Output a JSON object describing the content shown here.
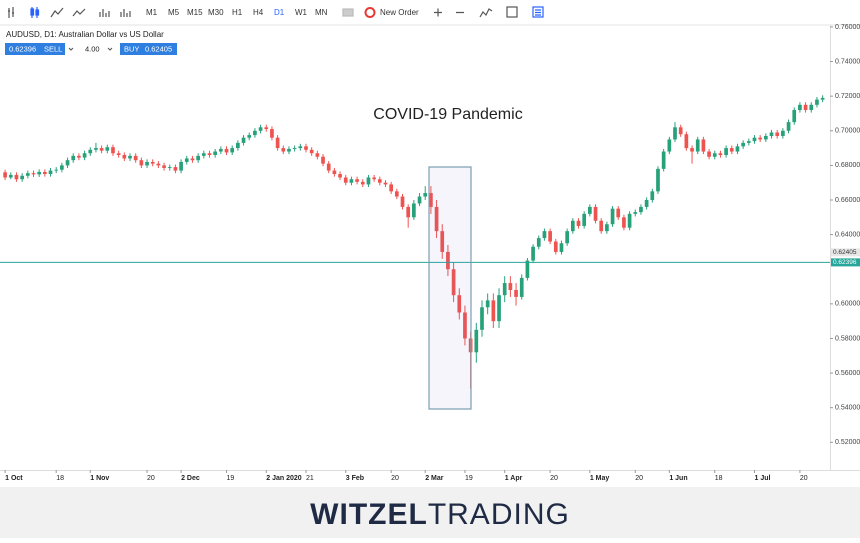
{
  "toolbar": {
    "timeframes": [
      "M1",
      "M5",
      "M15",
      "M30",
      "H1",
      "H4",
      "D1",
      "W1",
      "MN"
    ],
    "new_order": "New Order"
  },
  "trade_panel": {
    "sell_price": "0.62396",
    "sell": "SELL",
    "volume": "4.00",
    "buy": "BUY",
    "buy_price": "0.62405"
  },
  "chart_data": {
    "type": "candlestick",
    "symbol_label": "AUDUSD, D1: Australian Dollar vs US Dollar",
    "annotation": "COVID-19 Pandemic",
    "up_color": "#26a17a",
    "down_color": "#ef5350",
    "grid": false,
    "xlim": [
      -0.9,
      145.3
    ],
    "ylim": [
      0.504,
      0.764
    ],
    "xticks": [
      {
        "value": 0,
        "label": "1 Oct"
      },
      {
        "value": 9,
        "label": "18"
      },
      {
        "value": 15,
        "label": "1 Nov"
      },
      {
        "value": 25,
        "label": "20"
      },
      {
        "value": 31,
        "label": "2 Dec"
      },
      {
        "value": 39,
        "label": "19"
      },
      {
        "value": 46,
        "label": "2 Jan 2020"
      },
      {
        "value": 53,
        "label": "21"
      },
      {
        "value": 60,
        "label": "3 Feb"
      },
      {
        "value": 68,
        "label": "20"
      },
      {
        "value": 74,
        "label": "2 Mar"
      },
      {
        "value": 81,
        "label": "19"
      },
      {
        "value": 88,
        "label": "1 Apr"
      },
      {
        "value": 96,
        "label": "20"
      },
      {
        "value": 103,
        "label": "1 May"
      },
      {
        "value": 111,
        "label": "20"
      },
      {
        "value": 117,
        "label": "1 Jun"
      },
      {
        "value": 125,
        "label": "18"
      },
      {
        "value": 132,
        "label": "1 Jul"
      },
      {
        "value": 140,
        "label": "20"
      }
    ],
    "yticks": [
      {
        "value": 0.76,
        "label": "0.76000"
      },
      {
        "value": 0.74,
        "label": "0.74000"
      },
      {
        "value": 0.72,
        "label": "0.72000"
      },
      {
        "value": 0.7,
        "label": "0.70000"
      },
      {
        "value": 0.68,
        "label": "0.68000"
      },
      {
        "value": 0.66,
        "label": "0.66000"
      },
      {
        "value": 0.64,
        "label": "0.64000"
      },
      {
        "value": 0.6,
        "label": "0.60000"
      },
      {
        "value": 0.58,
        "label": "0.58000"
      },
      {
        "value": 0.56,
        "label": "0.56000"
      },
      {
        "value": 0.54,
        "label": "0.54000"
      },
      {
        "value": 0.52,
        "label": "0.52000"
      }
    ],
    "price_line": {
      "bid": 0.62396,
      "ask": 0.62405,
      "color": "#26a69a"
    },
    "open": [
      0.676,
      0.673,
      0.6745,
      0.672,
      0.674,
      0.6755,
      0.6748,
      0.6762,
      0.675,
      0.677,
      0.6775,
      0.68,
      0.683,
      0.6855,
      0.6845,
      0.687,
      0.689,
      0.69,
      0.6885,
      0.6905,
      0.687,
      0.686,
      0.684,
      0.6855,
      0.683,
      0.68,
      0.682,
      0.681,
      0.68,
      0.6785,
      0.679,
      0.677,
      0.682,
      0.684,
      0.683,
      0.6855,
      0.687,
      0.686,
      0.688,
      0.6895,
      0.6875,
      0.69,
      0.693,
      0.696,
      0.6975,
      0.7,
      0.702,
      0.701,
      0.696,
      0.69,
      0.688,
      0.6895,
      0.69,
      0.691,
      0.689,
      0.687,
      0.685,
      0.681,
      0.677,
      0.675,
      0.673,
      0.67,
      0.672,
      0.6705,
      0.669,
      0.673,
      0.672,
      0.67,
      0.669,
      0.665,
      0.662,
      0.656,
      0.65,
      0.658,
      0.662,
      0.664,
      0.656,
      0.642,
      0.63,
      0.62,
      0.605,
      0.595,
      0.58,
      0.572,
      0.585,
      0.598,
      0.602,
      0.59,
      0.605,
      0.612,
      0.608,
      0.604,
      0.615,
      0.625,
      0.633,
      0.638,
      0.642,
      0.636,
      0.63,
      0.635,
      0.642,
      0.648,
      0.645,
      0.652,
      0.656,
      0.648,
      0.642,
      0.646,
      0.655,
      0.65,
      0.644,
      0.652,
      0.653,
      0.656,
      0.66,
      0.665,
      0.678,
      0.688,
      0.695,
      0.702,
      0.698,
      0.69,
      0.688,
      0.695,
      0.688,
      0.685,
      0.687,
      0.686,
      0.69,
      0.688,
      0.691,
      0.693,
      0.694,
      0.696,
      0.695,
      0.697,
      0.699,
      0.697,
      0.7,
      0.705,
      0.712,
      0.715,
      0.712,
      0.715,
      0.718
    ],
    "high": [
      0.6775,
      0.676,
      0.676,
      0.6755,
      0.677,
      0.677,
      0.6777,
      0.6777,
      0.6785,
      0.679,
      0.6815,
      0.6845,
      0.687,
      0.687,
      0.6885,
      0.6905,
      0.693,
      0.6915,
      0.692,
      0.692,
      0.6885,
      0.6875,
      0.687,
      0.687,
      0.6845,
      0.6835,
      0.6835,
      0.6825,
      0.6815,
      0.6805,
      0.6805,
      0.6835,
      0.6855,
      0.6855,
      0.687,
      0.6885,
      0.6885,
      0.6895,
      0.691,
      0.691,
      0.6915,
      0.6945,
      0.6975,
      0.699,
      0.7015,
      0.7035,
      0.7035,
      0.7025,
      0.6975,
      0.6915,
      0.691,
      0.6915,
      0.6925,
      0.6925,
      0.6905,
      0.6885,
      0.6865,
      0.6825,
      0.6785,
      0.6765,
      0.6745,
      0.6735,
      0.6735,
      0.672,
      0.6745,
      0.6745,
      0.6735,
      0.6715,
      0.6705,
      0.6665,
      0.6635,
      0.6575,
      0.66,
      0.664,
      0.668,
      0.668,
      0.66,
      0.646,
      0.634,
      0.624,
      0.609,
      0.599,
      0.584,
      0.589,
      0.602,
      0.606,
      0.606,
      0.609,
      0.616,
      0.616,
      0.612,
      0.617,
      0.6265,
      0.6345,
      0.6395,
      0.6435,
      0.6435,
      0.6375,
      0.6365,
      0.6435,
      0.6495,
      0.6495,
      0.6535,
      0.6575,
      0.6575,
      0.6495,
      0.6475,
      0.6565,
      0.6565,
      0.6515,
      0.6535,
      0.6545,
      0.6575,
      0.6615,
      0.6665,
      0.6795,
      0.6895,
      0.6965,
      0.705,
      0.7035,
      0.6995,
      0.6915,
      0.6965,
      0.6965,
      0.6895,
      0.6885,
      0.6885,
      0.6915,
      0.6915,
      0.6925,
      0.6945,
      0.6955,
      0.6975,
      0.6975,
      0.6985,
      0.7005,
      0.7005,
      0.7015,
      0.7065,
      0.7135,
      0.7165,
      0.7165,
      0.7165,
      0.7195,
      0.7205
    ],
    "low": [
      0.6715,
      0.672,
      0.6705,
      0.6705,
      0.6725,
      0.6733,
      0.6733,
      0.6735,
      0.6735,
      0.6755,
      0.676,
      0.6785,
      0.6815,
      0.683,
      0.683,
      0.6855,
      0.6875,
      0.687,
      0.687,
      0.6855,
      0.6845,
      0.6825,
      0.6825,
      0.6815,
      0.6785,
      0.6785,
      0.6795,
      0.6785,
      0.677,
      0.677,
      0.6755,
      0.6755,
      0.6805,
      0.6815,
      0.6815,
      0.684,
      0.6845,
      0.6845,
      0.6865,
      0.686,
      0.686,
      0.6885,
      0.6915,
      0.6945,
      0.696,
      0.6985,
      0.6995,
      0.6945,
      0.6885,
      0.6865,
      0.6865,
      0.688,
      0.6885,
      0.6875,
      0.6855,
      0.6835,
      0.6795,
      0.6755,
      0.6735,
      0.6715,
      0.6685,
      0.6685,
      0.669,
      0.6675,
      0.6675,
      0.6705,
      0.6685,
      0.6675,
      0.6635,
      0.6605,
      0.6545,
      0.644,
      0.6485,
      0.6565,
      0.66,
      0.652,
      0.638,
      0.626,
      0.616,
      0.601,
      0.591,
      0.576,
      0.551,
      0.566,
      0.581,
      0.594,
      0.586,
      0.586,
      0.601,
      0.604,
      0.599,
      0.6025,
      0.6135,
      0.6235,
      0.6315,
      0.6365,
      0.6345,
      0.6285,
      0.6285,
      0.6335,
      0.6405,
      0.6435,
      0.6435,
      0.6505,
      0.6465,
      0.6405,
      0.6405,
      0.6445,
      0.6485,
      0.6425,
      0.6425,
      0.6505,
      0.6515,
      0.6545,
      0.6585,
      0.6635,
      0.6765,
      0.6865,
      0.6935,
      0.6965,
      0.6885,
      0.681,
      0.6865,
      0.6865,
      0.6835,
      0.6835,
      0.6845,
      0.6845,
      0.6865,
      0.6865,
      0.6895,
      0.6915,
      0.6925,
      0.6935,
      0.6935,
      0.6955,
      0.6955,
      0.6955,
      0.6985,
      0.7035,
      0.7105,
      0.7105,
      0.7105,
      0.7135,
      0.7165
    ],
    "close": [
      0.673,
      0.6745,
      0.672,
      0.674,
      0.6755,
      0.6748,
      0.6762,
      0.675,
      0.677,
      0.6775,
      0.68,
      0.683,
      0.6855,
      0.6845,
      0.687,
      0.689,
      0.69,
      0.6885,
      0.6905,
      0.687,
      0.686,
      0.684,
      0.6855,
      0.683,
      0.68,
      0.682,
      0.681,
      0.68,
      0.6785,
      0.679,
      0.677,
      0.682,
      0.684,
      0.683,
      0.6855,
      0.687,
      0.686,
      0.688,
      0.6895,
      0.6875,
      0.69,
      0.693,
      0.696,
      0.6975,
      0.7,
      0.702,
      0.701,
      0.696,
      0.69,
      0.688,
      0.6895,
      0.69,
      0.691,
      0.689,
      0.687,
      0.685,
      0.681,
      0.677,
      0.675,
      0.673,
      0.67,
      0.672,
      0.6705,
      0.669,
      0.673,
      0.672,
      0.67,
      0.669,
      0.665,
      0.662,
      0.656,
      0.65,
      0.658,
      0.662,
      0.664,
      0.656,
      0.642,
      0.63,
      0.62,
      0.605,
      0.595,
      0.58,
      0.572,
      0.585,
      0.598,
      0.602,
      0.59,
      0.605,
      0.612,
      0.608,
      0.604,
      0.615,
      0.625,
      0.633,
      0.638,
      0.642,
      0.636,
      0.63,
      0.635,
      0.642,
      0.648,
      0.645,
      0.652,
      0.656,
      0.648,
      0.642,
      0.646,
      0.655,
      0.65,
      0.644,
      0.652,
      0.653,
      0.656,
      0.66,
      0.665,
      0.678,
      0.688,
      0.695,
      0.702,
      0.698,
      0.69,
      0.688,
      0.695,
      0.688,
      0.685,
      0.687,
      0.686,
      0.69,
      0.688,
      0.691,
      0.693,
      0.694,
      0.696,
      0.695,
      0.697,
      0.699,
      0.697,
      0.7,
      0.705,
      0.712,
      0.715,
      0.712,
      0.715,
      0.718,
      0.719
    ]
  },
  "footer": {
    "brand_bold": "WITZEL",
    "brand_light": "TRADING"
  }
}
